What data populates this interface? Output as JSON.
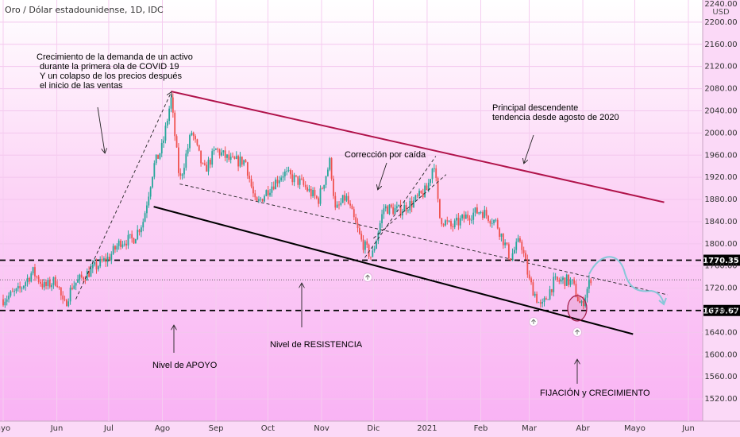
{
  "chart_data": {
    "type": "candlestick",
    "title": "Oro / Dólar estadounidense, 1D, IDC",
    "currency": "USD",
    "ylim": [
      1480,
      2240
    ],
    "y_ticks": [
      1520,
      1560,
      1600,
      1640,
      1680,
      1720,
      1760,
      1800,
      1840,
      1880,
      1920,
      1960,
      2000,
      2040,
      2080,
      2120,
      2160,
      2200,
      2240
    ],
    "x_ticks": [
      {
        "label": "ayo",
        "date": "2020-05-01"
      },
      {
        "label": "Jun",
        "date": "2020-06-01"
      },
      {
        "label": "Jul",
        "date": "2020-07-01"
      },
      {
        "label": "Ago",
        "date": "2020-08-01"
      },
      {
        "label": "Sep",
        "date": "2020-09-01"
      },
      {
        "label": "Oct",
        "date": "2020-10-01"
      },
      {
        "label": "Nov",
        "date": "2020-11-01"
      },
      {
        "label": "Dic",
        "date": "2020-12-01"
      },
      {
        "label": "2021",
        "date": "2021-01-01"
      },
      {
        "label": "Feb",
        "date": "2021-02-01"
      },
      {
        "label": "Mar",
        "date": "2021-03-01"
      },
      {
        "label": "Abr",
        "date": "2021-04-01"
      },
      {
        "label": "Mayo",
        "date": "2021-05-01"
      },
      {
        "label": "Jun",
        "date": "2021-06-01"
      }
    ],
    "price_series": [
      [
        "2020-05-01",
        1700
      ],
      [
        "2020-05-10",
        1715
      ],
      [
        "2020-05-18",
        1750
      ],
      [
        "2020-05-25",
        1722
      ],
      [
        "2020-06-01",
        1735
      ],
      [
        "2020-06-05",
        1685
      ],
      [
        "2020-06-10",
        1725
      ],
      [
        "2020-06-22",
        1755
      ],
      [
        "2020-07-01",
        1775
      ],
      [
        "2020-07-08",
        1805
      ],
      [
        "2020-07-15",
        1808
      ],
      [
        "2020-07-21",
        1842
      ],
      [
        "2020-07-27",
        1940
      ],
      [
        "2020-08-01",
        1975
      ],
      [
        "2020-08-06",
        2062
      ],
      [
        "2020-08-11",
        1912
      ],
      [
        "2020-08-18",
        2003
      ],
      [
        "2020-08-25",
        1930
      ],
      [
        "2020-09-01",
        1970
      ],
      [
        "2020-09-10",
        1948
      ],
      [
        "2020-09-18",
        1950
      ],
      [
        "2020-09-24",
        1868
      ],
      [
        "2020-10-01",
        1898
      ],
      [
        "2020-10-10",
        1928
      ],
      [
        "2020-10-20",
        1910
      ],
      [
        "2020-10-30",
        1878
      ],
      [
        "2020-11-06",
        1950
      ],
      [
        "2020-11-09",
        1858
      ],
      [
        "2020-11-15",
        1885
      ],
      [
        "2020-11-24",
        1805
      ],
      [
        "2020-11-30",
        1775
      ],
      [
        "2020-12-07",
        1865
      ],
      [
        "2020-12-16",
        1860
      ],
      [
        "2020-12-24",
        1875
      ],
      [
        "2021-01-01",
        1898
      ],
      [
        "2021-01-05",
        1950
      ],
      [
        "2021-01-08",
        1848
      ],
      [
        "2021-01-15",
        1830
      ],
      [
        "2021-01-25",
        1852
      ],
      [
        "2021-02-01",
        1860
      ],
      [
        "2021-02-10",
        1838
      ],
      [
        "2021-02-18",
        1775
      ],
      [
        "2021-02-24",
        1808
      ],
      [
        "2021-03-01",
        1733
      ],
      [
        "2021-03-08",
        1683
      ],
      [
        "2021-03-15",
        1730
      ],
      [
        "2021-03-22",
        1735
      ],
      [
        "2021-03-26",
        1728
      ],
      [
        "2021-03-31",
        1685
      ],
      [
        "2021-04-06",
        1742
      ]
    ],
    "horizontal_levels": [
      {
        "value": 1770.35,
        "label": "1770.35",
        "style": "dashed"
      },
      {
        "value": 1679.67,
        "label": "1679.67",
        "style": "dashed"
      }
    ],
    "last_price": 1735,
    "trendlines": [
      {
        "name": "descending-resistance",
        "color": "#b0124a",
        "from": [
          "2020-08-06",
          2075
        ],
        "to": [
          "2021-05-18",
          1875
        ]
      },
      {
        "name": "descending-support",
        "color": "#000000",
        "from": [
          "2020-07-27",
          1867
        ],
        "to": [
          "2021-04-30",
          1637
        ]
      },
      {
        "name": "mid-channel-dashed",
        "color": "#222222",
        "from": [
          "2020-08-11",
          1908
        ],
        "to": [
          "2021-05-20",
          1708
        ]
      }
    ],
    "annotations": [
      {
        "lines": [
          "Crecimiento de la demanda de un activo",
          "durante la primera ola de COVID 19",
          "Y un colapso de los precios después",
          "el inicio de las ventas"
        ]
      },
      {
        "lines": [
          "Principal descendente",
          "tendencia desde agosto de 2020"
        ]
      },
      {
        "lines": [
          "Corrección por caída"
        ]
      },
      {
        "lines": [
          "Nivel de RESISTENCIA"
        ]
      },
      {
        "lines": [
          "Nivel de APOYO"
        ]
      },
      {
        "lines": [
          "FIJACIÓN y CRECIMIENTO"
        ]
      }
    ],
    "colors": {
      "up": "#26a69a",
      "down": "#ef5350",
      "background_top": "#ffffff",
      "background_bottom": "#f9b3f4"
    }
  }
}
